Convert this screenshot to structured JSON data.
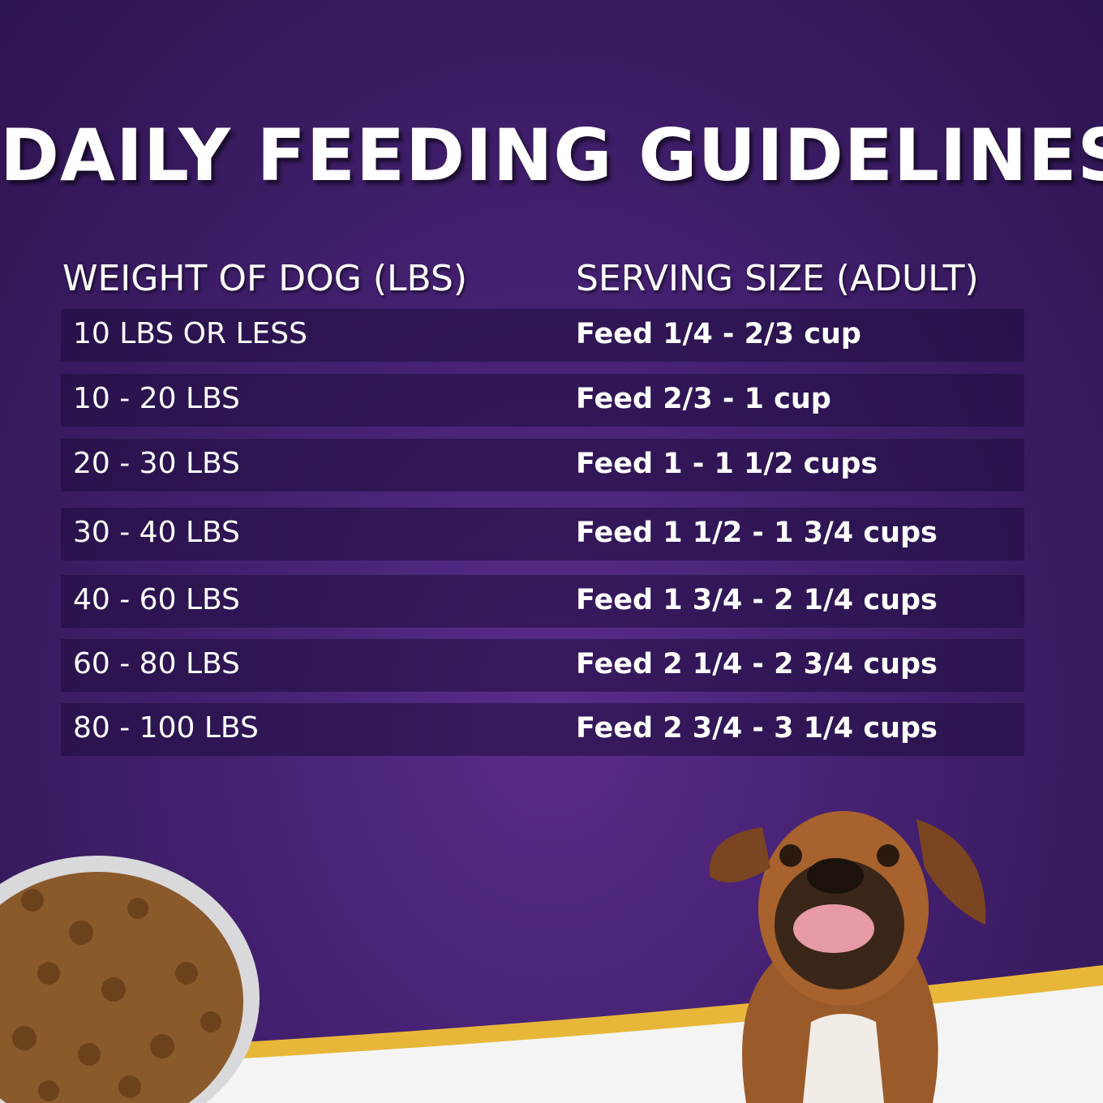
{
  "header": {
    "title": "DAILY FEEDING GUIDELINES"
  },
  "table": {
    "columns": [
      "WEIGHT OF DOG (LBS)",
      "SERVING SIZE (ADULT)"
    ],
    "rows": [
      [
        "10 LBS OR LESS",
        "Feed 1/4 - 2/3 cup"
      ],
      [
        "10 - 20 LBS",
        "Feed 2/3 - 1 cup"
      ],
      [
        "20 - 30 LBS",
        "Feed 1 - 1 1/2 cups"
      ],
      [
        "30 - 40 LBS",
        "Feed 1 1/2 - 1 3/4 cups"
      ],
      [
        "40 - 60 LBS",
        "Feed 1 3/4 - 2 1/4 cups"
      ],
      [
        "60 - 80 LBS",
        "Feed 2 1/4 - 2 3/4 cups"
      ],
      [
        "80 - 100 LBS",
        "Feed 2 3/4 - 3 1/4 cups"
      ]
    ]
  }
}
